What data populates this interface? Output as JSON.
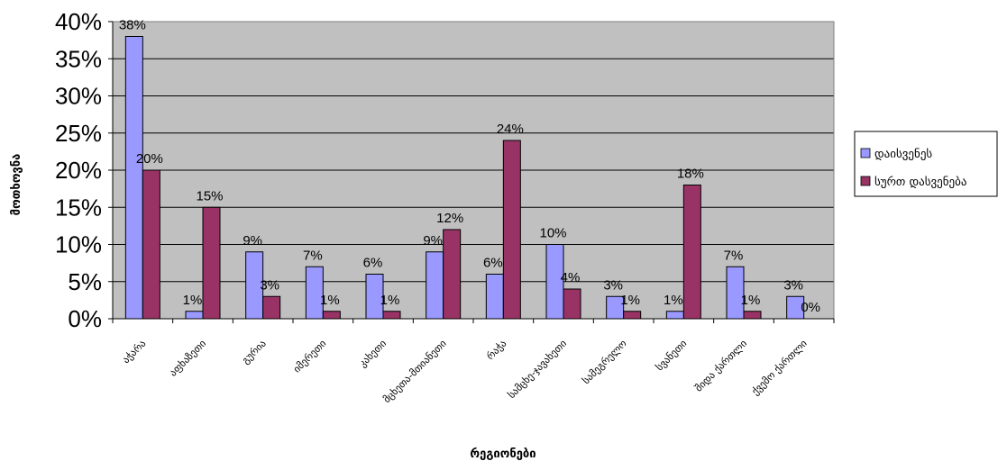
{
  "chart_data": {
    "type": "bar",
    "categories": [
      "აჭარა",
      "აფხაზეთი",
      "გურია",
      "იმერეთი",
      "კახეთი",
      "მცხეთა-მთიანეთი",
      "რაჭა",
      "სამცხე-ჯავახეთი",
      "სამეგრელო",
      "სვანეთი",
      "შიდა ქართლი",
      "ქვემო ქართლი"
    ],
    "series": [
      {
        "name": "დაისვენეს",
        "values": [
          38,
          1,
          9,
          7,
          6,
          9,
          6,
          10,
          3,
          1,
          7,
          3
        ],
        "labels": [
          "38%",
          "1%",
          "9%",
          "7%",
          "6%",
          "9%",
          "6%",
          "10%",
          "3%",
          "1%",
          "7%",
          "3%"
        ]
      },
      {
        "name": "სურთ დასვენება",
        "values": [
          20,
          15,
          3,
          1,
          1,
          12,
          24,
          4,
          1,
          18,
          1,
          0
        ],
        "labels": [
          "20%",
          "15%",
          "3%",
          "1%",
          "1%",
          "12%",
          "24%",
          "4%",
          "1%",
          "18%",
          "1%",
          "0%"
        ]
      }
    ],
    "xlabel": "რეგიონები",
    "ylabel": "მოთხოვნა",
    "ylim": [
      0,
      40
    ],
    "yticks": [
      "0%",
      "5%",
      "10%",
      "15%",
      "20%",
      "25%",
      "30%",
      "35%",
      "40%"
    ],
    "grid": true,
    "legend": "right",
    "colors": {
      "series1": "#9999FF",
      "series2": "#993366",
      "plot_bg": "#C0C0C0"
    }
  }
}
